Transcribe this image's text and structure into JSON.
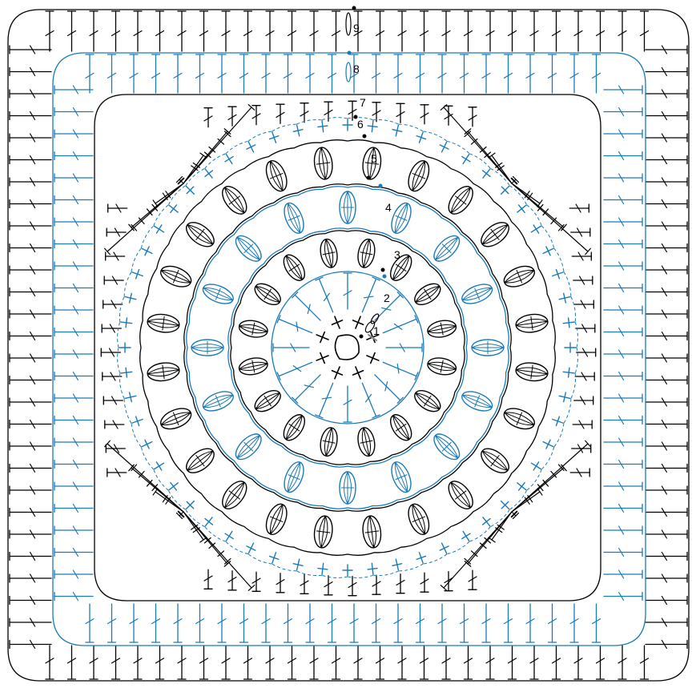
{
  "diagram": {
    "round_labels": [
      "1",
      "2",
      "3",
      "4",
      "5",
      "6",
      "7",
      "8",
      "9"
    ],
    "colors": {
      "black": "#000000",
      "blue": "#1a7ab8",
      "gray": "#8a8a8a",
      "background": "#ffffff"
    },
    "rounds": [
      {
        "label": "1",
        "color": "black",
        "stitch": "single-crochet-cross",
        "count": 8
      },
      {
        "label": "2",
        "color": "blue",
        "stitch": "double-crochet",
        "count": 16
      },
      {
        "label": "3",
        "color": "black",
        "stitch": "cluster-puff",
        "count": 16
      },
      {
        "label": "4",
        "color": "blue",
        "stitch": "cluster-puff",
        "count": 16
      },
      {
        "label": "5",
        "color": "black",
        "stitch": "cluster-puff",
        "count": 24
      },
      {
        "label": "6",
        "color": "blue",
        "stitch": "single-crochet-cross",
        "count": 48
      },
      {
        "label": "7",
        "color": "black",
        "stitch": "treble-corners",
        "count": 40
      },
      {
        "label": "8",
        "color": "blue",
        "stitch": "double-crochet",
        "count": 80
      },
      {
        "label": "9",
        "color": "black",
        "stitch": "double-crochet",
        "count": 80
      }
    ]
  }
}
